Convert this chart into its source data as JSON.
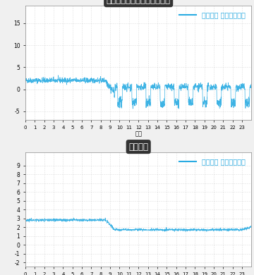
{
  "title1": "精肉ショーケースの吹出温度",
  "title2": "食品温度",
  "legend_label": "ウルトラ エコ・アイス",
  "line_color": "#29ABE2",
  "title_bg_color": "#333333",
  "title_text_color": "#ffffff",
  "chart_bg_color": "#f0f0f0",
  "plot_bg_color": "#ffffff",
  "grid_color": "#aaaaaa",
  "xlabel": "時間",
  "chart1_ylim": [
    -7,
    19
  ],
  "chart1_yticks": [
    -5,
    0,
    5,
    10,
    15
  ],
  "chart2_ylim": [
    -2.5,
    10.5
  ],
  "chart2_yticks": [
    -2,
    -1,
    0,
    1,
    2,
    3,
    4,
    5,
    6,
    7,
    8,
    9
  ],
  "xticks": [
    0,
    1,
    2,
    3,
    4,
    5,
    6,
    7,
    8,
    9,
    10,
    11,
    12,
    13,
    14,
    15,
    16,
    17,
    18,
    19,
    20,
    21,
    22,
    23
  ]
}
